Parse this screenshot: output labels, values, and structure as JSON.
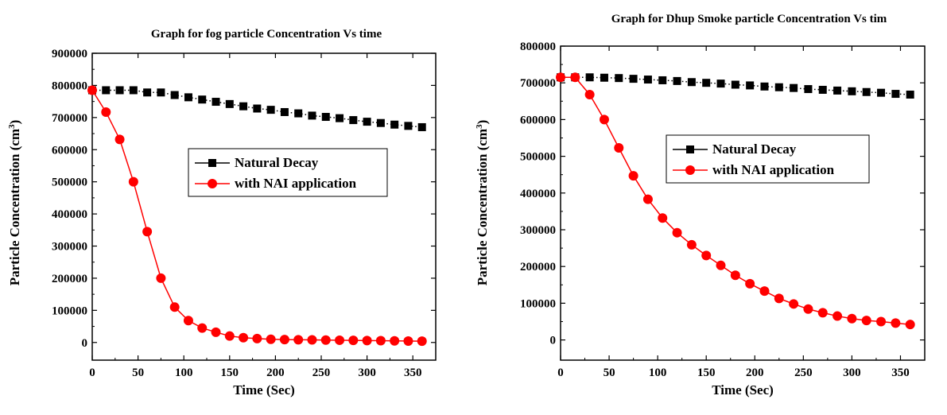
{
  "chart_data": [
    {
      "type": "line",
      "title": "Graph for fog particle Concentration Vs time",
      "xlabel": "Time (Sec)",
      "ylabel": "Particle Concentration (cm",
      "ylabel_sup": "3",
      "ylabel_end": ")",
      "xlim": [
        0,
        375
      ],
      "ylim": [
        -55000,
        900000
      ],
      "xticks": [
        0,
        50,
        100,
        150,
        200,
        250,
        300,
        350
      ],
      "yticks": [
        0,
        100000,
        200000,
        300000,
        400000,
        500000,
        600000,
        700000,
        800000,
        900000
      ],
      "legend_position": "center-right",
      "x": [
        0,
        15,
        30,
        45,
        60,
        75,
        90,
        105,
        120,
        135,
        150,
        165,
        180,
        195,
        210,
        225,
        240,
        255,
        270,
        285,
        300,
        315,
        330,
        345,
        360
      ],
      "series": [
        {
          "name": "Natural Decay",
          "marker": "square",
          "line": "dotted",
          "color": "#000000",
          "values": [
            785000,
            785000,
            785000,
            785000,
            778000,
            778000,
            770000,
            763000,
            756000,
            749000,
            742000,
            735000,
            728000,
            724000,
            717000,
            713000,
            706000,
            702000,
            698000,
            692000,
            687000,
            683000,
            678000,
            674000,
            670000
          ]
        },
        {
          "name": "with NAI application",
          "marker": "circle",
          "line": "solid",
          "color": "#ff0000",
          "values": [
            785000,
            717000,
            632000,
            500000,
            345000,
            200000,
            110000,
            68000,
            45000,
            32000,
            20000,
            15000,
            12000,
            10000,
            9000,
            8500,
            8000,
            7500,
            7000,
            6500,
            6000,
            5500,
            5000,
            4500,
            4000
          ]
        }
      ]
    },
    {
      "type": "line",
      "title": "Graph for Dhup Smoke particle Concentration Vs tim",
      "xlabel": "Time (Sec)",
      "ylabel": "Particle Concentration (cm",
      "ylabel_sup": "3",
      "ylabel_end": ")",
      "xlim": [
        0,
        375
      ],
      "ylim": [
        -55000,
        800000
      ],
      "xticks": [
        0,
        50,
        100,
        150,
        200,
        250,
        300,
        350
      ],
      "yticks": [
        0,
        100000,
        200000,
        300000,
        400000,
        500000,
        600000,
        700000,
        800000
      ],
      "legend_position": "center-right",
      "x": [
        0,
        15,
        30,
        45,
        60,
        75,
        90,
        105,
        120,
        135,
        150,
        165,
        180,
        195,
        210,
        225,
        240,
        255,
        270,
        285,
        300,
        315,
        330,
        345,
        360
      ],
      "series": [
        {
          "name": "Natural Decay",
          "marker": "square",
          "line": "dotted",
          "color": "#000000",
          "values": [
            715000,
            715000,
            715000,
            714000,
            713000,
            711000,
            709000,
            707000,
            705000,
            702000,
            700000,
            698000,
            695000,
            693000,
            690000,
            688000,
            686000,
            683000,
            681000,
            679000,
            677000,
            675000,
            673000,
            670000,
            668000
          ]
        },
        {
          "name": "with NAI application",
          "marker": "circle",
          "line": "solid",
          "color": "#ff0000",
          "values": [
            715000,
            715000,
            668000,
            600000,
            523000,
            447000,
            383000,
            332000,
            292000,
            259000,
            230000,
            203000,
            176000,
            153000,
            133000,
            113000,
            98000,
            84000,
            74000,
            65000,
            58000,
            53000,
            50000,
            46000,
            42000
          ]
        }
      ]
    }
  ]
}
